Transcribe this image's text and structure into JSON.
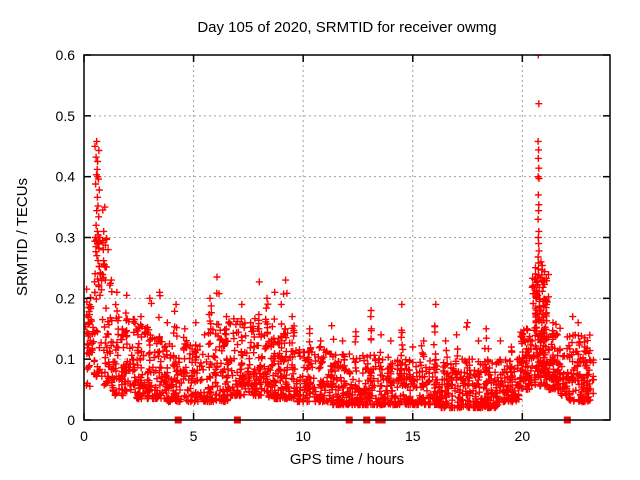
{
  "chart_data": {
    "type": "scatter",
    "title": "Day 105 of 2020, SRMTID for receiver owmg",
    "xlabel": "GPS time / hours",
    "ylabel": "SRMTID / TECUs",
    "xlim": [
      0,
      24
    ],
    "ylim": [
      0,
      0.6
    ],
    "xticks": [
      0,
      5,
      10,
      15,
      20
    ],
    "yticks": [
      0,
      0.1,
      0.2,
      0.3,
      0.4,
      0.5,
      0.6
    ],
    "grid": true,
    "legend": "none",
    "colors": {
      "points": "#ff0000",
      "axis": "#000000",
      "grid": "#a0a0a0",
      "background": "#ffffff"
    },
    "marker": {
      "shape": "plus",
      "color": "#ff0000",
      "size": 7
    },
    "flag_marker": {
      "shape": "filled-square",
      "color": "#ff0000",
      "size": 7
    },
    "flag_points_x": [
      4.3,
      7.0,
      12.1,
      12.9,
      13.45,
      13.6,
      22.05
    ],
    "peak_points": [
      [
        0.58,
        0.458
      ],
      [
        0.5,
        0.45
      ],
      [
        0.68,
        0.443
      ],
      [
        0.55,
        0.432
      ],
      [
        0.62,
        0.425
      ],
      [
        0.6,
        0.412
      ],
      [
        0.57,
        0.403
      ],
      [
        0.63,
        0.4
      ],
      [
        0.66,
        0.396
      ],
      [
        0.53,
        0.388
      ],
      [
        0.7,
        0.378
      ],
      [
        0.61,
        0.366
      ],
      [
        0.64,
        0.352
      ],
      [
        0.58,
        0.344
      ],
      [
        0.67,
        0.334
      ],
      [
        0.55,
        0.32
      ],
      [
        0.61,
        0.31
      ],
      [
        0.65,
        0.304
      ],
      [
        0.52,
        0.3
      ],
      [
        0.57,
        0.296
      ],
      [
        0.62,
        0.29
      ],
      [
        0.72,
        0.3
      ],
      [
        0.68,
        0.282
      ],
      [
        0.59,
        0.27
      ],
      [
        0.64,
        0.262
      ],
      [
        0.7,
        0.252
      ],
      [
        0.75,
        0.242
      ],
      [
        0.62,
        0.232
      ],
      [
        0.67,
        0.222
      ],
      [
        0.8,
        0.214
      ],
      [
        0.73,
        0.205
      ],
      [
        0.86,
        0.345
      ],
      [
        0.9,
        0.31
      ],
      [
        0.88,
        0.28
      ],
      [
        0.93,
        0.255
      ],
      [
        0.97,
        0.23
      ],
      [
        20.73,
        0.6
      ],
      [
        20.75,
        0.52
      ],
      [
        20.72,
        0.458
      ],
      [
        20.74,
        0.444
      ],
      [
        20.73,
        0.43
      ],
      [
        20.75,
        0.414
      ],
      [
        20.72,
        0.4
      ],
      [
        20.76,
        0.397
      ],
      [
        20.73,
        0.37
      ],
      [
        20.75,
        0.354
      ],
      [
        20.74,
        0.344
      ],
      [
        20.72,
        0.33
      ],
      [
        20.75,
        0.31
      ],
      [
        20.73,
        0.3
      ],
      [
        20.74,
        0.29
      ],
      [
        20.76,
        0.278
      ],
      [
        20.72,
        0.268
      ],
      [
        20.74,
        0.258
      ],
      [
        20.73,
        0.248
      ],
      [
        20.75,
        0.238
      ],
      [
        20.71,
        0.228
      ],
      [
        20.77,
        0.218
      ],
      [
        20.7,
        0.205
      ],
      [
        20.78,
        0.195
      ]
    ],
    "point_generation": {
      "seed": 20105,
      "segments": [
        [
          0.02,
          0.45,
          22,
          0.1,
          0.23,
          1.0
        ],
        [
          0.45,
          1.25,
          60,
          0.07,
          0.3,
          1.8
        ],
        [
          1.25,
          2.3,
          85,
          0.04,
          0.17,
          1.8
        ],
        [
          2.3,
          3.7,
          115,
          0.035,
          0.16,
          2.0
        ],
        [
          3.7,
          5.3,
          125,
          0.03,
          0.13,
          2.0
        ],
        [
          5.3,
          6.6,
          105,
          0.03,
          0.15,
          2.0
        ],
        [
          6.6,
          8.4,
          140,
          0.04,
          0.17,
          1.9
        ],
        [
          8.4,
          9.7,
          115,
          0.035,
          0.16,
          1.9
        ],
        [
          9.7,
          11.1,
          120,
          0.03,
          0.12,
          2.0
        ],
        [
          11.1,
          13.9,
          240,
          0.025,
          0.11,
          2.0
        ],
        [
          13.9,
          16.3,
          210,
          0.025,
          0.1,
          2.0
        ],
        [
          16.3,
          18.9,
          230,
          0.02,
          0.1,
          2.0
        ],
        [
          18.9,
          19.9,
          85,
          0.03,
          0.11,
          1.8
        ],
        [
          19.9,
          20.45,
          60,
          0.05,
          0.15,
          1.5
        ],
        [
          20.45,
          21.2,
          110,
          0.07,
          0.26,
          1.8
        ],
        [
          21.2,
          21.75,
          65,
          0.05,
          0.16,
          1.8
        ],
        [
          21.75,
          22.05,
          22,
          0.04,
          0.12,
          1.8
        ],
        [
          22.05,
          23.1,
          105,
          0.03,
          0.14,
          1.7
        ],
        [
          23.1,
          23.25,
          8,
          0.04,
          0.1,
          1.5
        ]
      ],
      "columns": [
        [
          0.12,
          0.215,
          8
        ],
        [
          0.22,
          0.185,
          8
        ],
        [
          0.32,
          0.165,
          6
        ],
        [
          0.95,
          0.35,
          10
        ],
        [
          1.1,
          0.28,
          10
        ],
        [
          1.25,
          0.23,
          8
        ],
        [
          1.5,
          0.21,
          10
        ],
        [
          1.95,
          0.205,
          10
        ],
        [
          2.3,
          0.165,
          8
        ],
        [
          2.6,
          0.17,
          8
        ],
        [
          3.0,
          0.2,
          10
        ],
        [
          3.45,
          0.21,
          12
        ],
        [
          3.8,
          0.16,
          8
        ],
        [
          4.2,
          0.19,
          10
        ],
        [
          4.6,
          0.15,
          8
        ],
        [
          5.1,
          0.16,
          8
        ],
        [
          5.75,
          0.2,
          10
        ],
        [
          6.07,
          0.235,
          12
        ],
        [
          6.5,
          0.17,
          8
        ],
        [
          7.2,
          0.19,
          12
        ],
        [
          7.6,
          0.16,
          8
        ],
        [
          8.0,
          0.227,
          12
        ],
        [
          8.35,
          0.2,
          10
        ],
        [
          8.7,
          0.21,
          10
        ],
        [
          9.0,
          0.19,
          10
        ],
        [
          9.2,
          0.23,
          10
        ],
        [
          9.5,
          0.17,
          8
        ],
        [
          10.3,
          0.15,
          8
        ],
        [
          10.8,
          0.13,
          6
        ],
        [
          11.3,
          0.155,
          8
        ],
        [
          11.8,
          0.13,
          6
        ],
        [
          12.4,
          0.145,
          8
        ],
        [
          13.1,
          0.18,
          10
        ],
        [
          13.55,
          0.14,
          6
        ],
        [
          14.0,
          0.13,
          6
        ],
        [
          14.5,
          0.19,
          10
        ],
        [
          15.0,
          0.12,
          6
        ],
        [
          15.5,
          0.13,
          6
        ],
        [
          16.05,
          0.19,
          10
        ],
        [
          16.5,
          0.13,
          6
        ],
        [
          17.0,
          0.14,
          6
        ],
        [
          17.5,
          0.16,
          8
        ],
        [
          18.0,
          0.13,
          6
        ],
        [
          18.35,
          0.15,
          8
        ],
        [
          19.0,
          0.13,
          6
        ],
        [
          19.5,
          0.12,
          6
        ],
        [
          20.0,
          0.14,
          8
        ],
        [
          20.2,
          0.15,
          8
        ],
        [
          20.6,
          0.24,
          20
        ],
        [
          20.85,
          0.26,
          22
        ],
        [
          21.0,
          0.23,
          16
        ],
        [
          21.1,
          0.19,
          12
        ],
        [
          21.4,
          0.16,
          10
        ],
        [
          21.6,
          0.14,
          8
        ],
        [
          22.3,
          0.17,
          8
        ],
        [
          22.55,
          0.16,
          8
        ],
        [
          22.85,
          0.12,
          6
        ]
      ]
    }
  }
}
